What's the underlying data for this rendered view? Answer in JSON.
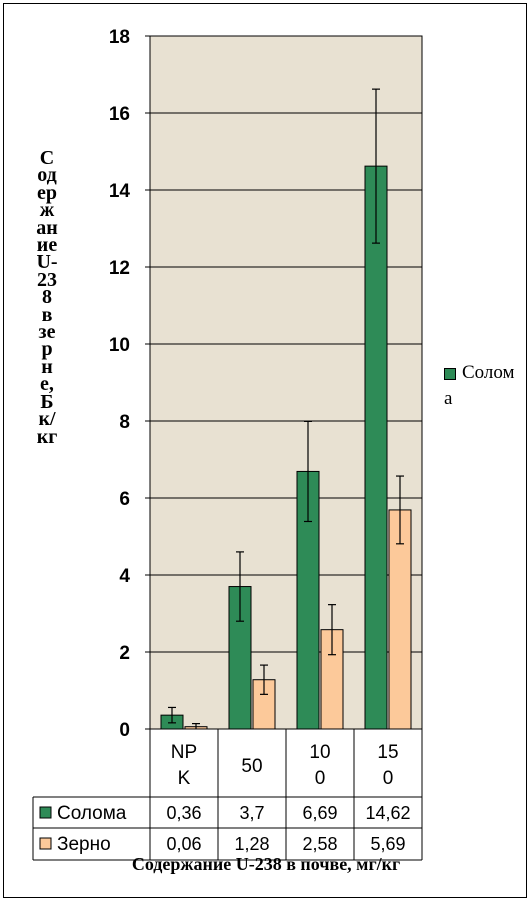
{
  "chart_data": {
    "type": "bar",
    "categories": [
      "NP K",
      "50",
      "10 0",
      "15 0"
    ],
    "series": [
      {
        "name": "Солома",
        "values": [
          0.36,
          3.7,
          6.69,
          14.62
        ],
        "errors": [
          0.2,
          0.9,
          1.3,
          2.0
        ],
        "labels": [
          "0,36",
          "3,7",
          "6,69",
          "14,62"
        ],
        "color": "#2e8b57"
      },
      {
        "name": "Зерно",
        "values": [
          0.06,
          1.28,
          2.58,
          5.69
        ],
        "errors": [
          0.08,
          0.38,
          0.65,
          0.88
        ],
        "labels": [
          "0,06",
          "1,28",
          "2,58",
          "5,69"
        ],
        "color": "#fcc99a"
      }
    ],
    "ylim": [
      0,
      18
    ],
    "yticks": [
      0,
      2,
      4,
      6,
      8,
      10,
      12,
      14,
      16,
      18
    ],
    "ylabel": "Содержание U-238 в зерне, Бк/кг",
    "xlabel": "Содержание U-238 в почве, мг/кг",
    "legend": "right",
    "legend_entries": [
      "Солом а"
    ],
    "grid": true,
    "plot_background": "#e8e1d2",
    "data_table": true
  }
}
